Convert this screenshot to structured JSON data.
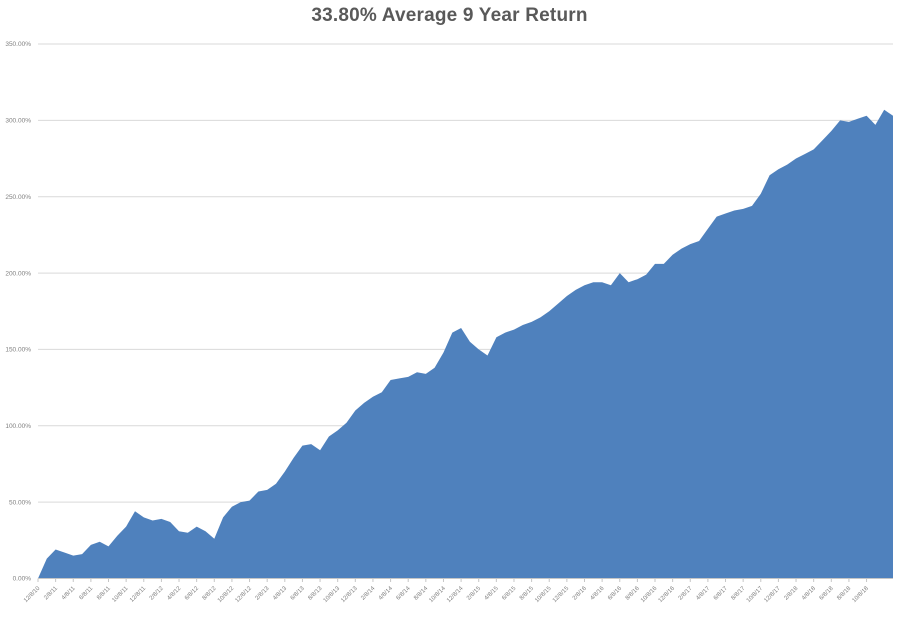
{
  "colors": {
    "area_fill": "#4F81BD",
    "gridline": "#D9D9D9",
    "axis_line": "#C6C6C6",
    "axis_text": "#808080",
    "title_text": "#595959",
    "background": "#FFFFFF"
  },
  "chart_data": {
    "type": "area",
    "title": "33.80% Average 9 Year Return",
    "xlabel": "",
    "ylabel": "",
    "ylim": [
      0,
      350
    ],
    "grid": true,
    "legend": "none",
    "y_tick_labels": [
      "350.00%",
      "300.00%",
      "250.00%",
      "200.00%",
      "150.00%",
      "100.00%",
      "50.00%",
      "0.00%"
    ],
    "y_tick_values": [
      350,
      300,
      250,
      200,
      150,
      100,
      50,
      0
    ],
    "x_tick_labels": [
      "12/8/10",
      "2/8/11",
      "4/8/11",
      "6/8/11",
      "8/8/11",
      "10/8/11",
      "12/8/11",
      "2/8/12",
      "4/8/12",
      "6/8/12",
      "8/8/12",
      "10/8/12",
      "12/8/12",
      "2/8/13",
      "4/8/13",
      "6/8/13",
      "8/8/13",
      "10/8/13",
      "12/8/13",
      "2/8/14",
      "4/8/14",
      "6/8/14",
      "8/8/14",
      "10/8/14",
      "12/8/14",
      "2/8/15",
      "4/8/15",
      "6/8/15",
      "8/8/15",
      "10/8/15",
      "12/8/15",
      "2/8/16",
      "4/8/16",
      "6/8/16",
      "8/8/16",
      "10/8/16",
      "12/8/16",
      "2/8/17",
      "4/8/17",
      "6/8/17",
      "8/8/17",
      "10/8/17",
      "12/8/17",
      "2/8/18",
      "4/8/18",
      "6/8/18",
      "8/8/18",
      "10/8/18"
    ],
    "x_tick_every": 2,
    "values_unit": "percent cumulative return, monthly samples starting 12/8/10",
    "values": [
      0,
      13,
      19,
      17,
      15,
      16,
      22,
      24,
      21,
      28,
      34,
      44,
      40,
      38,
      39,
      37,
      31,
      30,
      34,
      31,
      26,
      40,
      47,
      50,
      51,
      57,
      58,
      62,
      70,
      79,
      87,
      88,
      84,
      93,
      97,
      102,
      110,
      115,
      119,
      122,
      130,
      131,
      132,
      135,
      134,
      138,
      148,
      161,
      164,
      155,
      150,
      146,
      158,
      161,
      163,
      166,
      168,
      171,
      175,
      180,
      185,
      189,
      192,
      194,
      194,
      192,
      200,
      194,
      196,
      199,
      206,
      206,
      212,
      216,
      219,
      221,
      229,
      237,
      239,
      241,
      242,
      244,
      252,
      264,
      268,
      271,
      275,
      278,
      281,
      287,
      293,
      300,
      299,
      301,
      303,
      297,
      307,
      303
    ]
  }
}
